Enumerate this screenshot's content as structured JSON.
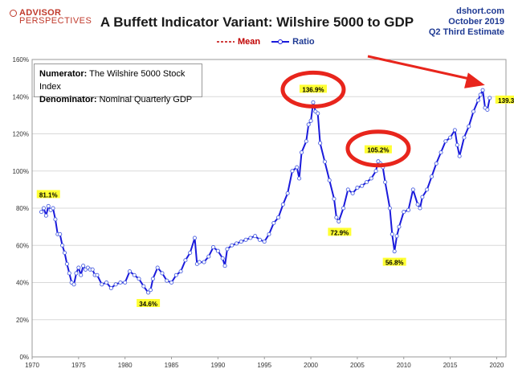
{
  "header": {
    "logo_top": "ADVISOR",
    "logo_bottom": "PERSPECTIVES",
    "title": "A Buffett Indicator Variant: Wilshire 5000 to GDP",
    "source_line1": "dshort.com",
    "source_line2": "October 2019",
    "source_line3": "Q2 Third Estimate"
  },
  "infobox": {
    "numerator_label": "Numerator:",
    "numerator_value": "The Wilshire 5000 Stock Index",
    "denominator_label": "Denominator:",
    "denominator_value": "Nominal Quarterly GDP"
  },
  "colors": {
    "ratio_line": "#1a1adb",
    "mean_line": "#c00000",
    "annotation_highlight": "#ffff33",
    "circle": "#e8251c",
    "arrow": "#e8251c",
    "grid": "#d9d9d9"
  },
  "chart_data": {
    "type": "line",
    "title": "A Buffett Indicator Variant: Wilshire 5000 to GDP",
    "xlabel": "",
    "ylabel": "",
    "xlim": [
      1970,
      2021
    ],
    "ylim": [
      0,
      160
    ],
    "grid": true,
    "legend_position": "top-center",
    "x_ticks": [
      1970,
      1975,
      1980,
      1985,
      1990,
      1995,
      2000,
      2005,
      2010,
      2015,
      2020
    ],
    "y_ticks": [
      "0%",
      "20%",
      "40%",
      "60%",
      "80%",
      "100%",
      "120%",
      "140%",
      "160%"
    ],
    "legend": [
      {
        "name": "Mean",
        "style": "dashed"
      },
      {
        "name": "Ratio",
        "style": "line-with-markers"
      }
    ],
    "series": [
      {
        "name": "Ratio",
        "x": [
          1971.0,
          1971.25,
          1971.5,
          1971.75,
          1972.0,
          1972.25,
          1972.5,
          1972.75,
          1973.0,
          1973.25,
          1973.5,
          1973.75,
          1974.0,
          1974.25,
          1974.5,
          1974.75,
          1975.0,
          1975.25,
          1975.5,
          1975.75,
          1976.0,
          1976.25,
          1976.5,
          1976.75,
          1977.0,
          1977.5,
          1978.0,
          1978.5,
          1979.0,
          1979.5,
          1980.0,
          1980.5,
          1981.0,
          1981.5,
          1982.0,
          1982.5,
          1982.75,
          1983.0,
          1983.5,
          1984.0,
          1984.5,
          1985.0,
          1985.5,
          1986.0,
          1986.5,
          1987.0,
          1987.5,
          1987.75,
          1988.0,
          1988.5,
          1989.0,
          1989.5,
          1990.0,
          1990.5,
          1990.75,
          1991.0,
          1991.5,
          1992.0,
          1992.5,
          1993.0,
          1993.5,
          1994.0,
          1994.5,
          1995.0,
          1995.5,
          1996.0,
          1996.5,
          1997.0,
          1997.5,
          1998.0,
          1998.5,
          1998.75,
          1999.0,
          1999.5,
          1999.75,
          2000.0,
          2000.25,
          2000.5,
          2000.75,
          2001.0,
          2001.5,
          2002.0,
          2002.5,
          2002.75,
          2003.0,
          2003.5,
          2004.0,
          2004.5,
          2005.0,
          2005.5,
          2006.0,
          2006.5,
          2007.0,
          2007.25,
          2007.5,
          2007.75,
          2008.0,
          2008.5,
          2008.75,
          2009.0,
          2009.25,
          2009.5,
          2010.0,
          2010.5,
          2011.0,
          2011.5,
          2011.75,
          2012.0,
          2012.5,
          2013.0,
          2013.5,
          2014.0,
          2014.5,
          2015.0,
          2015.5,
          2015.75,
          2016.0,
          2016.5,
          2017.0,
          2017.5,
          2018.0,
          2018.25,
          2018.5,
          2018.75,
          2019.0,
          2019.25
        ],
        "values": [
          78,
          80,
          76,
          81.1,
          79,
          80,
          74,
          66,
          66,
          60,
          56,
          50,
          45,
          40,
          39,
          45,
          48,
          44,
          49,
          47,
          48,
          47,
          47,
          44,
          44,
          39,
          40,
          37,
          39,
          40,
          40,
          46,
          44,
          42,
          38,
          34.6,
          36,
          42,
          48,
          45,
          41,
          40,
          44,
          46,
          52,
          56,
          64,
          50,
          51,
          51,
          54,
          59,
          57,
          53,
          49,
          58,
          60,
          61,
          62,
          63,
          64,
          65,
          63,
          62,
          66,
          72,
          75,
          82,
          88,
          100,
          102,
          96,
          110,
          116,
          125,
          127,
          136.9,
          132,
          131,
          115,
          105,
          95,
          85,
          75,
          72.9,
          80,
          90,
          88,
          91,
          92,
          94,
          96,
          100,
          105.2,
          104,
          102,
          94,
          80,
          66,
          56.8,
          65,
          70,
          78,
          79,
          90,
          82,
          80,
          86,
          90,
          97,
          104,
          110,
          116,
          118,
          122,
          114,
          108,
          118,
          124,
          132,
          138,
          141,
          143.5,
          134,
          133,
          139.3
        ]
      }
    ],
    "annotations": [
      {
        "label": "81.1%",
        "x": 1971.75,
        "y": 81.1
      },
      {
        "label": "34.6%",
        "x": 1982.5,
        "y": 34.6
      },
      {
        "label": "136.9%",
        "x": 2000.25,
        "y": 136.9
      },
      {
        "label": "72.9%",
        "x": 2002.75,
        "y": 72.9
      },
      {
        "label": "105.2%",
        "x": 2007.25,
        "y": 105.2
      },
      {
        "label": "56.8%",
        "x": 2009.0,
        "y": 56.8
      },
      {
        "label": "139.3%",
        "x": 2019.25,
        "y": 139.3
      }
    ],
    "circled_points": [
      2000.25,
      2007.25
    ],
    "arrow_target": 2019.25
  }
}
